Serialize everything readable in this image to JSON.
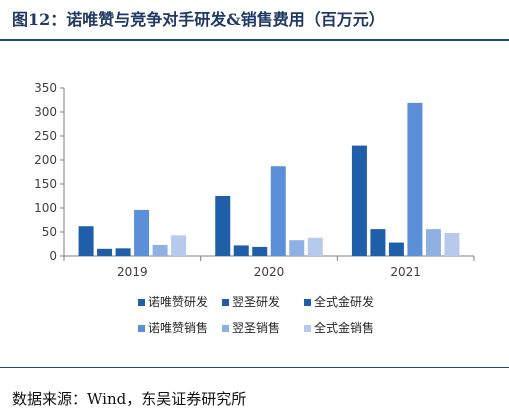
{
  "header": {
    "title": "图12：诺唯赞与竞争对手研发&销售费用（百万元）"
  },
  "footer": {
    "source": "数据来源：Wind，东吴证券研究所"
  },
  "chart_data": {
    "type": "bar",
    "title": "",
    "xlabel": "",
    "ylabel": "",
    "ylim": [
      0,
      350
    ],
    "yticks": [
      0,
      50,
      100,
      150,
      200,
      250,
      300,
      350
    ],
    "grid": false,
    "legend_position": "bottom",
    "categories": [
      "2019",
      "2020",
      "2021"
    ],
    "series": [
      {
        "name": "诺唯赞研发",
        "color": "#1f5ea8",
        "values": [
          62,
          125,
          230
        ]
      },
      {
        "name": "翌圣研发",
        "color": "#1f5ea8",
        "values": [
          15,
          22,
          56
        ]
      },
      {
        "name": "全式金研发",
        "color": "#1f5ea8",
        "values": [
          16,
          19,
          28
        ]
      },
      {
        "name": "诺唯赞销售",
        "color": "#5b8fd8",
        "values": [
          96,
          187,
          319
        ]
      },
      {
        "name": "翌圣销售",
        "color": "#8fb0e3",
        "values": [
          23,
          33,
          56
        ]
      },
      {
        "name": "全式金销售",
        "color": "#b7c9ec",
        "values": [
          43,
          38,
          48
        ]
      }
    ]
  }
}
